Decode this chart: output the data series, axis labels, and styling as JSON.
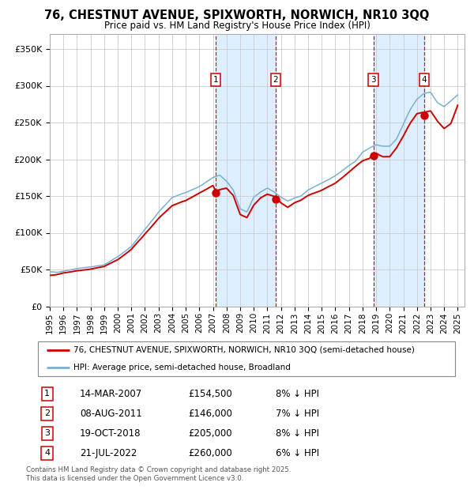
{
  "title": "76, CHESTNUT AVENUE, SPIXWORTH, NORWICH, NR10 3QQ",
  "subtitle": "Price paid vs. HM Land Registry's House Price Index (HPI)",
  "legend_red": "76, CHESTNUT AVENUE, SPIXWORTH, NORWICH, NR10 3QQ (semi-detached house)",
  "legend_blue": "HPI: Average price, semi-detached house, Broadland",
  "footer": "Contains HM Land Registry data © Crown copyright and database right 2025.\nThis data is licensed under the Open Government Licence v3.0.",
  "transactions": [
    {
      "num": 1,
      "date": "14-MAR-2007",
      "price": 154500,
      "pct": "8%",
      "year_x": 2007.2
    },
    {
      "num": 2,
      "date": "08-AUG-2011",
      "price": 146000,
      "pct": "7%",
      "year_x": 2011.6
    },
    {
      "num": 3,
      "date": "19-OCT-2018",
      "price": 205000,
      "pct": "8%",
      "year_x": 2018.8
    },
    {
      "num": 4,
      "date": "21-JUL-2022",
      "price": 260000,
      "pct": "6%",
      "year_x": 2022.55
    }
  ],
  "ylim": [
    0,
    370000
  ],
  "xlim_start": 1995,
  "xlim_end": 2025.5,
  "red_color": "#cc0000",
  "blue_color": "#7ab0d4",
  "shade_color": "#ddeeff",
  "grid_color": "#cccccc",
  "background_color": "#ffffff",
  "hpi_anchors": [
    [
      1995.0,
      47000
    ],
    [
      1995.5,
      46000
    ],
    [
      1996.0,
      48000
    ],
    [
      1997.0,
      52000
    ],
    [
      1998.0,
      54000
    ],
    [
      1999.0,
      57000
    ],
    [
      2000.0,
      68000
    ],
    [
      2001.0,
      82000
    ],
    [
      2002.0,
      105000
    ],
    [
      2003.0,
      128000
    ],
    [
      2004.0,
      148000
    ],
    [
      2005.0,
      155000
    ],
    [
      2006.0,
      163000
    ],
    [
      2007.0,
      175000
    ],
    [
      2007.5,
      178000
    ],
    [
      2008.0,
      170000
    ],
    [
      2008.5,
      158000
    ],
    [
      2009.0,
      132000
    ],
    [
      2009.5,
      128000
    ],
    [
      2010.0,
      148000
    ],
    [
      2010.5,
      155000
    ],
    [
      2011.0,
      160000
    ],
    [
      2011.5,
      155000
    ],
    [
      2012.0,
      148000
    ],
    [
      2012.5,
      143000
    ],
    [
      2013.0,
      147000
    ],
    [
      2013.5,
      150000
    ],
    [
      2014.0,
      158000
    ],
    [
      2015.0,
      168000
    ],
    [
      2016.0,
      178000
    ],
    [
      2017.0,
      192000
    ],
    [
      2017.5,
      198000
    ],
    [
      2018.0,
      210000
    ],
    [
      2018.5,
      215000
    ],
    [
      2019.0,
      220000
    ],
    [
      2019.5,
      218000
    ],
    [
      2020.0,
      218000
    ],
    [
      2020.5,
      228000
    ],
    [
      2021.0,
      248000
    ],
    [
      2021.5,
      268000
    ],
    [
      2022.0,
      282000
    ],
    [
      2022.5,
      290000
    ],
    [
      2023.0,
      292000
    ],
    [
      2023.5,
      278000
    ],
    [
      2024.0,
      272000
    ],
    [
      2024.5,
      280000
    ],
    [
      2025.0,
      288000
    ]
  ],
  "red_anchors": [
    [
      1995.0,
      42000
    ],
    [
      1995.5,
      43000
    ],
    [
      1996.0,
      45000
    ],
    [
      1997.0,
      48000
    ],
    [
      1998.0,
      50000
    ],
    [
      1999.0,
      53000
    ],
    [
      2000.0,
      62000
    ],
    [
      2001.0,
      76000
    ],
    [
      2002.0,
      97000
    ],
    [
      2003.0,
      118000
    ],
    [
      2004.0,
      135000
    ],
    [
      2005.0,
      142000
    ],
    [
      2006.0,
      152000
    ],
    [
      2007.0,
      162000
    ],
    [
      2007.2,
      154500
    ],
    [
      2007.5,
      156000
    ],
    [
      2008.0,
      158000
    ],
    [
      2008.5,
      148000
    ],
    [
      2009.0,
      122000
    ],
    [
      2009.5,
      118000
    ],
    [
      2010.0,
      135000
    ],
    [
      2010.5,
      145000
    ],
    [
      2011.0,
      150000
    ],
    [
      2011.6,
      146000
    ],
    [
      2012.0,
      138000
    ],
    [
      2012.5,
      132000
    ],
    [
      2013.0,
      138000
    ],
    [
      2013.5,
      142000
    ],
    [
      2014.0,
      148000
    ],
    [
      2015.0,
      155000
    ],
    [
      2016.0,
      165000
    ],
    [
      2017.0,
      180000
    ],
    [
      2017.5,
      188000
    ],
    [
      2018.0,
      195000
    ],
    [
      2018.5,
      198000
    ],
    [
      2018.8,
      205000
    ],
    [
      2019.0,
      205000
    ],
    [
      2019.5,
      200000
    ],
    [
      2020.0,
      200000
    ],
    [
      2020.5,
      212000
    ],
    [
      2021.0,
      228000
    ],
    [
      2021.5,
      245000
    ],
    [
      2022.0,
      258000
    ],
    [
      2022.55,
      260000
    ],
    [
      2023.0,
      262000
    ],
    [
      2023.5,
      248000
    ],
    [
      2024.0,
      238000
    ],
    [
      2024.5,
      245000
    ],
    [
      2025.0,
      270000
    ]
  ]
}
